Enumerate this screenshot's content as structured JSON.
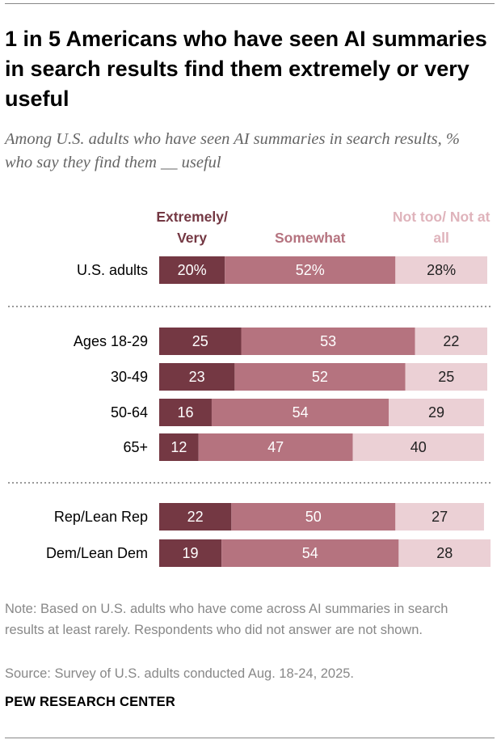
{
  "title": "1 in 5 Americans who have seen AI summaries in search results find them extremely or very useful",
  "subtitle": "Among U.S. adults who have seen AI summaries in search results, % who say they find them __ useful",
  "note": "Note: Based on U.S. adults who have come across AI summaries in search results at least rarely. Respondents who did not answer are not shown.",
  "source": "Source: Survey of U.S. adults conducted Aug. 18-24, 2025.",
  "brand": "PEW RESEARCH CENTER",
  "chart_data": {
    "type": "stacked-bar",
    "categories": [
      "U.S. adults",
      "Ages 18-29",
      "30-49",
      "50-64",
      "65+",
      "Rep/Lean Rep",
      "Dem/Lean Dem"
    ],
    "series": [
      {
        "name": "Extremely/ Very",
        "color": "#743843",
        "values": [
          20,
          25,
          23,
          16,
          12,
          22,
          19
        ],
        "value_labels": [
          "20%",
          "25",
          "23",
          "16",
          "12",
          "22",
          "19"
        ]
      },
      {
        "name": "Somewhat",
        "color": "#b5737f",
        "values": [
          52,
          53,
          52,
          54,
          47,
          50,
          54
        ],
        "value_labels": [
          "52%",
          "53",
          "52",
          "54",
          "47",
          "50",
          "54"
        ]
      },
      {
        "name": "Not too/ Not at all",
        "color": "#ebd0d5",
        "values": [
          28,
          22,
          25,
          29,
          40,
          27,
          28
        ],
        "value_labels": [
          "28%",
          "22",
          "25",
          "29",
          "40",
          "27",
          "28"
        ]
      }
    ]
  }
}
